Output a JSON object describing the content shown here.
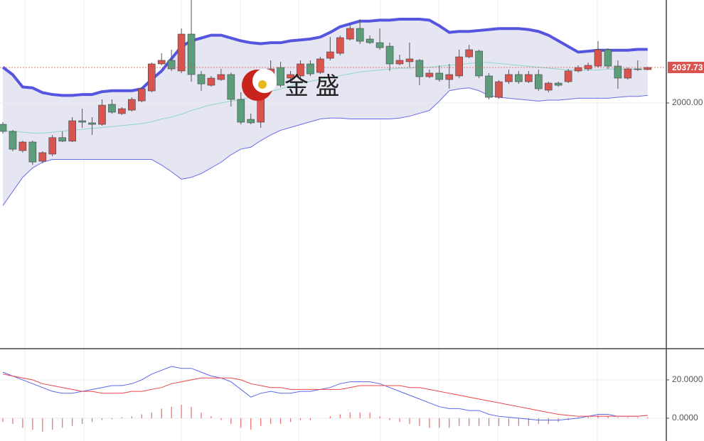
{
  "chart_data": [
    {
      "type": "candlestick",
      "watermark": "金 盛",
      "open": [
        1977.3,
        1969.8,
        1949.4,
        1958.5,
        1938.1,
        1945.7,
        1963.2,
        1959.4,
        1981.1,
        1978.9,
        1977.3,
        1998.5,
        1988.7,
        1992.4,
        2002.2,
        2012.8,
        2041.5,
        2045.3,
        2034.0,
        2073.2,
        2030.2,
        2018.8,
        2024.9,
        2030.2,
        2003.8,
        1982.6,
        1979.6,
        2028.7,
        2037.7,
        2026.4,
        2028.7,
        2041.5,
        2032.4,
        2047.5,
        2052.8,
        2067.9,
        2079.2,
        2067.9,
        2064.1,
        2060.3,
        2041.5,
        2043.8,
        2045.3,
        2027.9,
        2031.7,
        2024.9,
        2028.7,
        2049.0,
        2055.1,
        2028.7,
        2006.0,
        2022.6,
        2030.2,
        2022.6,
        2030.2,
        2013.6,
        2021.1,
        2022.6,
        2034.0,
        2036.2,
        2039.2,
        2056.6,
        2039.2,
        2026.4,
        2036.2,
        2035.5
      ],
      "close": [
        1969.8,
        1950.9,
        1958.5,
        1937.3,
        1947.2,
        1963.2,
        1959.4,
        1981.1,
        1979.6,
        1977.3,
        1997.7,
        1990.2,
        1993.9,
        2003.8,
        2015.1,
        2041.5,
        2045.3,
        2036.2,
        2073.2,
        2030.2,
        2020.3,
        2026.4,
        2030.2,
        2003.8,
        1979.6,
        1978.9,
        2030.2,
        2036.2,
        2018.8,
        2030.2,
        2041.5,
        2030.9,
        2046.8,
        2054.3,
        2069.4,
        2079.2,
        2065.6,
        2064.1,
        2058.8,
        2041.5,
        2045.3,
        2046.8,
        2027.9,
        2031.7,
        2024.9,
        2030.2,
        2049.0,
        2056.6,
        2028.7,
        2006.0,
        2022.6,
        2030.2,
        2022.6,
        2030.2,
        2015.1,
        2021.1,
        2018.8,
        2034.0,
        2037.7,
        2040.0,
        2056.6,
        2039.2,
        2026.4,
        2036.2,
        2035.5,
        2037.73
      ],
      "high": [
        1979.6,
        1971.3,
        1960.0,
        1960.0,
        1948.7,
        1966.0,
        1969.8,
        1984.9,
        1993.9,
        1984.9,
        2003.8,
        2003.8,
        1995.5,
        2006.0,
        2016.6,
        2043.0,
        2052.8,
        2056.6,
        2079.2,
        2109.4,
        2034.0,
        2028.7,
        2036.2,
        2032.4,
        2011.3,
        1988.7,
        2034.0,
        2045.3,
        2043.8,
        2034.0,
        2045.3,
        2045.3,
        2049.0,
        2070.2,
        2071.7,
        2083.0,
        2089.0,
        2071.7,
        2079.2,
        2064.1,
        2051.3,
        2064.1,
        2046.8,
        2035.5,
        2040.0,
        2041.5,
        2056.6,
        2061.8,
        2056.6,
        2031.7,
        2024.1,
        2035.5,
        2034.0,
        2034.0,
        2035.5,
        2022.6,
        2022.6,
        2036.2,
        2040.0,
        2043.0,
        2065.6,
        2058.1,
        2045.3,
        2037.7,
        2045.3,
        2038.5
      ],
      "low": [
        1967.5,
        1948.7,
        1947.2,
        1934.3,
        1935.8,
        1943.4,
        1958.5,
        1958.5,
        1973.6,
        1966.0,
        1975.8,
        1988.7,
        1987.2,
        1990.9,
        2000.7,
        2011.3,
        2040.0,
        2034.0,
        2031.7,
        2022.6,
        2012.8,
        2017.3,
        2023.4,
        1996.2,
        1977.3,
        1977.3,
        1973.6,
        2024.9,
        2016.6,
        2021.1,
        2026.4,
        2028.7,
        2030.9,
        2045.3,
        2050.5,
        2066.4,
        2062.6,
        2062.6,
        2056.6,
        2034.0,
        2040.0,
        2037.7,
        2018.8,
        2026.4,
        2022.6,
        2015.1,
        2026.4,
        2047.5,
        2026.4,
        2003.8,
        2004.5,
        2020.3,
        2020.3,
        2021.1,
        2012.8,
        2011.3,
        2017.3,
        2021.1,
        2032.4,
        2034.0,
        2037.7,
        2036.2,
        2015.1,
        2024.9,
        2034.0,
        2034.8
      ],
      "up_color": "#d9534f",
      "down_color": "#5c9e7c",
      "ylim": [
        1739.7,
        2109.4
      ],
      "yticks": [
        {
          "value": 2000,
          "label": "2000.00"
        }
      ],
      "last_price": 2037.73,
      "last_price_color": "#d9534f",
      "band_fill": "#e6e6f3",
      "bands": [
        {
          "color": "#5555e0",
          "width": 4,
          "values": [
            2038,
            2030,
            2017,
            2016,
            2011,
            2009,
            2008,
            2008,
            2009,
            2009,
            2012,
            2013,
            2013,
            2013,
            2015,
            2025,
            2034,
            2047,
            2060,
            2066,
            2069,
            2072,
            2072,
            2069,
            2066,
            2064,
            2063,
            2064,
            2064,
            2066,
            2067,
            2068,
            2070,
            2075,
            2081,
            2084,
            2087,
            2087,
            2088,
            2088,
            2089,
            2089,
            2089,
            2088,
            2082,
            2075,
            2076,
            2076,
            2077,
            2078,
            2079,
            2079,
            2079,
            2078,
            2076,
            2072,
            2066,
            2060,
            2054,
            2055,
            2056,
            2056,
            2056,
            2056,
            2057,
            2057
          ]
        },
        {
          "color": "#8fd8c6",
          "width": 1,
          "values": [
            1970,
            1970,
            1969,
            1968,
            1968,
            1969,
            1970,
            1971,
            1972,
            1973,
            1974,
            1975,
            1976,
            1977,
            1978,
            1980,
            1983,
            1985,
            1988,
            1992,
            1995,
            1998,
            2000,
            2002,
            2004,
            2006,
            2009,
            2012,
            2015,
            2018,
            2021,
            2023,
            2025,
            2027,
            2029,
            2031,
            2033,
            2034,
            2035,
            2036,
            2037,
            2037,
            2038,
            2038,
            2039,
            2040,
            2041,
            2042,
            2043,
            2043,
            2042,
            2041,
            2040,
            2039,
            2038,
            2037,
            2036,
            2035,
            2035,
            2035,
            2035,
            2036,
            2036,
            2036,
            2036,
            2036
          ]
        },
        {
          "color": "#6b6be6",
          "width": 1,
          "values": [
            1891,
            1906,
            1921,
            1931,
            1937,
            1940,
            1940,
            1940,
            1940,
            1940,
            1940,
            1940,
            1940,
            1940,
            1940,
            1940,
            1934,
            1927,
            1919,
            1921,
            1925,
            1931,
            1937,
            1945,
            1951,
            1953,
            1960,
            1966,
            1971,
            1974,
            1977,
            1980,
            1983,
            1984,
            1984,
            1983,
            1983,
            1983,
            1983,
            1983,
            1984,
            1986,
            1989,
            1992,
            2002,
            2013,
            2015,
            2016,
            2013,
            2008,
            2006,
            2005,
            2004,
            2003,
            2002,
            2003,
            2003,
            2004,
            2005,
            2005,
            2005,
            2005,
            2006,
            2007,
            2007,
            2008
          ]
        }
      ]
    },
    {
      "type": "macd",
      "ylim": [
        -11.9,
        35.9
      ],
      "yticks": [
        {
          "value": 20,
          "label": "20.0000"
        },
        {
          "value": 0,
          "label": "0.0000"
        }
      ],
      "series": [
        {
          "color": "#5b68e8",
          "values": [
            24,
            22,
            20,
            18,
            16,
            14,
            13,
            13,
            14,
            15,
            16,
            17,
            17,
            18,
            20,
            23,
            25,
            27,
            26,
            26,
            24,
            22,
            21,
            19,
            15,
            11,
            13,
            14,
            13,
            13,
            14,
            14,
            15,
            16,
            18,
            19,
            19,
            19,
            18,
            16,
            14,
            12,
            10,
            8,
            6,
            5,
            5,
            4,
            4,
            2,
            1,
            0.5,
            0,
            -0.5,
            -1,
            -1,
            -1,
            -0.5,
            0,
            1,
            2,
            2,
            1,
            1,
            1,
            1.5
          ]
        },
        {
          "color": "#e8474a",
          "values": [
            23,
            22,
            21,
            20,
            18,
            17,
            16,
            15,
            14,
            14,
            13,
            13,
            13,
            14,
            14,
            15,
            16,
            18,
            19,
            20,
            21,
            21,
            21,
            21,
            20,
            18,
            17,
            16,
            16,
            15,
            15,
            15,
            15,
            15,
            15,
            16,
            17,
            17,
            17,
            17,
            17,
            16,
            16,
            15,
            14,
            13,
            12,
            11,
            10,
            9,
            8,
            7,
            6,
            5,
            4,
            3,
            2,
            1.5,
            1,
            1,
            1,
            1,
            1,
            1,
            1,
            1.5
          ]
        }
      ],
      "histogram": {
        "color": "#ec6b6b",
        "values": [
          -2,
          -3,
          -5,
          -6,
          -7,
          -6,
          -5,
          -4,
          -3,
          -2,
          -1,
          -0.5,
          0.5,
          1,
          2,
          3,
          5,
          6,
          7,
          6,
          3,
          1,
          -1,
          -3,
          -5,
          -6,
          -4,
          -3,
          -3,
          -2,
          -1,
          -1,
          0,
          1,
          2,
          3,
          3,
          3,
          1,
          -1,
          -2,
          -3,
          -4,
          -5,
          -5,
          -5,
          -4,
          -4,
          -4,
          -4,
          -4,
          -4,
          -4,
          -4,
          -3,
          -3,
          -2,
          -1,
          0.5,
          1,
          1.5,
          1,
          0.5,
          0.5,
          0.5,
          0.5
        ]
      }
    }
  ]
}
